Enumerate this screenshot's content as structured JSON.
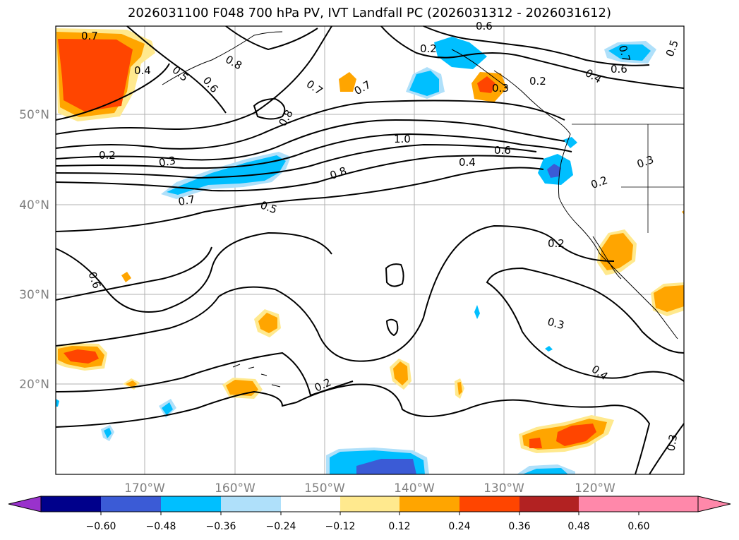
{
  "title": "2026031100 F048 700 hPa PV, IVT Landfall PC (2026031312 - 2026031612)",
  "colors": {
    "pos_012": "#ffe98e",
    "pos_024": "#ffa500",
    "pos_036": "#ff4500",
    "pos_048": "#b22222",
    "pos_over": "#ff88aa",
    "neg_012": "#afe0fa",
    "neg_024": "#00bfff",
    "neg_036": "#3b5bd6",
    "neg_048": "#00008b",
    "neg_under": "#9932cc",
    "grid": "#b0b0b0",
    "axis_label": "#808080"
  },
  "longitude_labels": [
    "170°W",
    "160°W",
    "150°W",
    "140°W",
    "130°W",
    "120°W"
  ],
  "latitude_labels": [
    "50°N",
    "40°N",
    "30°N",
    "20°N"
  ],
  "colorbar": {
    "tick_labels": [
      "−0.60",
      "−0.48",
      "−0.36",
      "−0.24",
      "−0.12",
      "0.12",
      "0.24",
      "0.36",
      "0.48",
      "0.60"
    ],
    "segments": [
      {
        "color": "#9932cc"
      },
      {
        "color": "#00008b"
      },
      {
        "color": "#3b5bd6"
      },
      {
        "color": "#00bfff"
      },
      {
        "color": "#afe0fa"
      },
      {
        "color": "#ffffff"
      },
      {
        "color": "#ffe98e"
      },
      {
        "color": "#ffa500"
      },
      {
        "color": "#ff4500"
      },
      {
        "color": "#b22222"
      },
      {
        "color": "#ff88aa"
      }
    ]
  },
  "contour_labels": [
    "0.7",
    "0.4",
    "0.5",
    "0.6",
    "0.8",
    "0.7",
    "0.7",
    "0.8",
    "0.6",
    "0.3",
    "0.2",
    "0.4",
    "0.6",
    "0.7",
    "0.5",
    "1.0",
    "0.6",
    "0.4",
    "0.8",
    "0.2",
    "0.3",
    "0.7",
    "0.5",
    "0.2",
    "0.3",
    "0.2",
    "0.2",
    "0.6",
    "0.3",
    "0.4",
    "0.2",
    "0.3"
  ]
}
